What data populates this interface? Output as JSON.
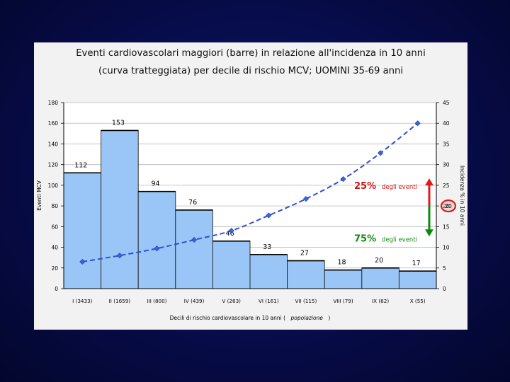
{
  "title_line1": "Eventi cardiovascolari maggiori (barre) in relazione all'incidenza in 10 anni",
  "title_line2": "(curva tratteggiata) per decile di rischio MCV; UOMINI 35-69 anni",
  "chart_data": {
    "type": "bar",
    "categories": [
      "I (3433)",
      "II (1659)",
      "III (800)",
      "IV (439)",
      "V (263)",
      "VI (161)",
      "VII (115)",
      "VIII (79)",
      "IX (62)",
      "X (55)"
    ],
    "series": [
      {
        "values": [
          112,
          153,
          94,
          76,
          46,
          33,
          27,
          18,
          20,
          17
        ]
      },
      {
        "values": [
          6.5,
          8,
          9.7,
          11.8,
          14,
          17.7,
          21.7,
          26.5,
          32.8,
          40
        ]
      }
    ],
    "bar_labels": [
      "112",
      "153",
      "94",
      "76",
      "46",
      "33",
      "27",
      "18",
      "20",
      "17"
    ],
    "xlabel_part1": "Decili di rischio cardiovascolare in 10 anni (",
    "xlabel_part2": "popolazione",
    "xlabel_part3": ")",
    "ylabel_left": "Eventi MCV",
    "ylabel_right": "Incidenza % in 10 anni",
    "ylim_left": [
      0,
      180
    ],
    "yticks_left": [
      "0",
      "20",
      "40",
      "60",
      "80",
      "100",
      "120",
      "140",
      "160",
      "180"
    ],
    "ylim_right": [
      0,
      45
    ],
    "yticks_right": [
      "0",
      "5",
      "10",
      "15",
      "20",
      "25",
      "30",
      "35",
      "40",
      "45"
    ],
    "annotations": {
      "upper_pct": "25%",
      "upper_text": "degli eventi",
      "lower_pct": "75%",
      "lower_text": "degli eventi",
      "threshold": "20"
    },
    "colors": {
      "bar": "#99c6f7",
      "bar_stroke": "#1f1f1f",
      "line": "#2f4fd1",
      "marker": "#3c64e0",
      "red": "#e21a1a",
      "green": "#0a8a0a",
      "upper_text": "#d11414",
      "lower_text": "#0f8a0f"
    }
  }
}
